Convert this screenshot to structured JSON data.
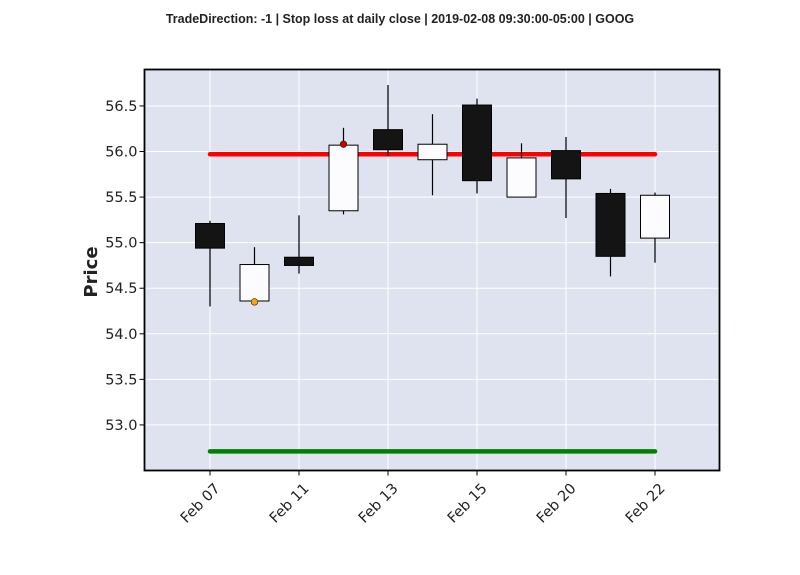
{
  "chart_data": {
    "type": "candlestick",
    "title": "TradeDirection: -1 | Stop loss at daily close | 2019-02-08 09:30:00-05:00 | GOOG",
    "xlabel": "",
    "ylabel": "Price",
    "ylim": [
      52.5,
      56.9
    ],
    "yticks": [
      "53.0",
      "53.5",
      "54.0",
      "54.5",
      "55.0",
      "55.5",
      "56.0",
      "56.5"
    ],
    "xticks": [
      {
        "index": 0,
        "label": "Feb 07"
      },
      {
        "index": 2,
        "label": "Feb 11"
      },
      {
        "index": 4,
        "label": "Feb 13"
      },
      {
        "index": 6,
        "label": "Feb 15"
      },
      {
        "index": 8,
        "label": "Feb 20"
      },
      {
        "index": 10,
        "label": "Feb 22"
      }
    ],
    "candles": [
      {
        "index": 0,
        "open": 55.21,
        "high": 55.24,
        "low": 54.3,
        "close": 54.94
      },
      {
        "index": 1,
        "open": 54.36,
        "high": 54.95,
        "low": 54.34,
        "close": 54.76
      },
      {
        "index": 2,
        "open": 54.84,
        "high": 55.3,
        "low": 54.66,
        "close": 54.75
      },
      {
        "index": 3,
        "open": 55.35,
        "high": 56.26,
        "low": 55.31,
        "close": 56.07
      },
      {
        "index": 4,
        "open": 56.24,
        "high": 56.73,
        "low": 55.95,
        "close": 56.02
      },
      {
        "index": 5,
        "open": 55.91,
        "high": 56.41,
        "low": 55.52,
        "close": 56.08
      },
      {
        "index": 6,
        "open": 56.51,
        "high": 56.58,
        "low": 55.54,
        "close": 55.68
      },
      {
        "index": 7,
        "open": 55.5,
        "high": 56.09,
        "low": 55.5,
        "close": 55.93
      },
      {
        "index": 8,
        "open": 56.01,
        "high": 56.16,
        "low": 55.27,
        "close": 55.7
      },
      {
        "index": 9,
        "open": 55.54,
        "high": 55.59,
        "low": 54.63,
        "close": 54.85
      },
      {
        "index": 10,
        "open": 55.05,
        "high": 55.55,
        "low": 54.78,
        "close": 55.52
      }
    ],
    "horizontal_lines": [
      {
        "y": 55.97,
        "from_index": 0,
        "to_index": 10,
        "color": "#ff0000"
      },
      {
        "y": 52.71,
        "from_index": 0,
        "to_index": 10,
        "color": "#008000"
      }
    ],
    "markers": [
      {
        "index": 3,
        "y": 56.08,
        "color": "#cc0000"
      },
      {
        "index": 1,
        "y": 54.35,
        "color": "#ffa500"
      }
    ],
    "colors": {
      "up_body": "#fcfcff",
      "down_body": "#141414",
      "plot_background": "#dfe3ef",
      "grid": "#ffffff"
    },
    "grid": true
  }
}
